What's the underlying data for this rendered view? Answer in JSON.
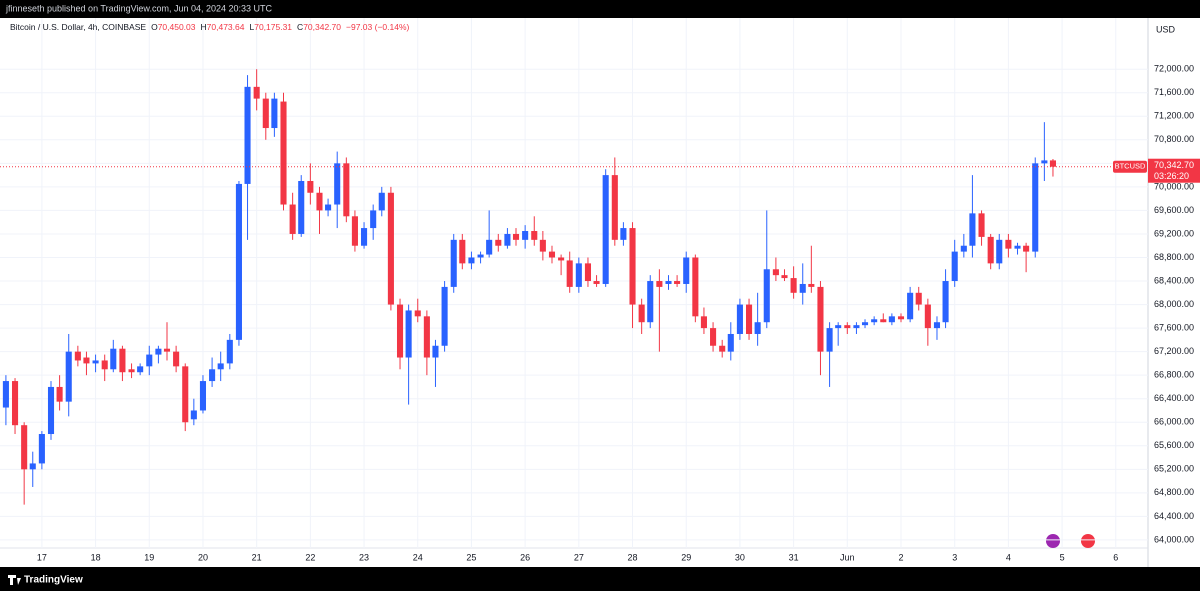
{
  "header": {
    "publisher": "jfinneseth published on TradingView.com, Jun 04, 2024 20:33 UTC"
  },
  "legend": {
    "symbol": "Bitcoin / U.S. Dollar, 4h, COINBASE",
    "items": [
      {
        "key": "O",
        "value": "70,450.03"
      },
      {
        "key": "H",
        "value": "70,473.64"
      },
      {
        "key": "L",
        "value": "70,175.31"
      },
      {
        "key": "C",
        "value": "70,342.70"
      }
    ],
    "change": "−97.03 (−0.14%)"
  },
  "footer": {
    "brand": "TradingView"
  },
  "chart_data": {
    "type": "candlestick",
    "currency": "USD",
    "up_color": "#2962ff",
    "down_color": "#f23645",
    "grid": true,
    "xlim": [
      16.22,
      37.6
    ],
    "ylim": [
      63540,
      72870
    ],
    "xticks": [
      17,
      18,
      19,
      20,
      21,
      22,
      23,
      24,
      25,
      26,
      27,
      28,
      29,
      30,
      31,
      {
        "value": 32,
        "label": "Jun"
      },
      {
        "value": 33,
        "label": "2"
      },
      {
        "value": 34,
        "label": "3"
      },
      {
        "value": 35,
        "label": "4"
      },
      {
        "value": 36,
        "label": "5"
      },
      {
        "value": 37,
        "label": "6"
      }
    ],
    "yticks": [
      {
        "value": 64000,
        "label": "64,000.00"
      },
      {
        "value": 64400,
        "label": "64,400.00"
      },
      {
        "value": 64800,
        "label": "64,800.00"
      },
      {
        "value": 65200,
        "label": "65,200.00"
      },
      {
        "value": 65600,
        "label": "65,600.00"
      },
      {
        "value": 66000,
        "label": "66,000.00"
      },
      {
        "value": 66400,
        "label": "66,400.00"
      },
      {
        "value": 66800,
        "label": "66,800.00"
      },
      {
        "value": 67200,
        "label": "67,200.00"
      },
      {
        "value": 67600,
        "label": "67,600.00"
      },
      {
        "value": 68000,
        "label": "68,000.00"
      },
      {
        "value": 68400,
        "label": "68,400.00"
      },
      {
        "value": 68800,
        "label": "68,800.00"
      },
      {
        "value": 69200,
        "label": "69,200.00"
      },
      {
        "value": 69600,
        "label": "69,600.00"
      },
      {
        "value": 70000,
        "label": "70,000.00"
      },
      {
        "value": 70400,
        "label": "70,400.00"
      },
      {
        "value": 70800,
        "label": "70,800.00"
      },
      {
        "value": 71200,
        "label": "71,200.00"
      },
      {
        "value": 71600,
        "label": "71,600.00"
      },
      {
        "value": 72000,
        "label": "72,000.00"
      }
    ],
    "last": {
      "symbol": "BTCUSD",
      "price": {
        "value": 70342.7,
        "label": "70,342.70"
      },
      "countdown": "03:26:20"
    },
    "candles": [
      {
        "x": 16.33,
        "open": 66250,
        "high": 66800,
        "low": 65950,
        "close": 66700
      },
      {
        "x": 16.5,
        "open": 66700,
        "high": 66750,
        "low": 65800,
        "close": 65950
      },
      {
        "x": 16.67,
        "open": 65950,
        "high": 66000,
        "low": 64600,
        "close": 65200
      },
      {
        "x": 16.83,
        "open": 65200,
        "high": 65500,
        "low": 64900,
        "close": 65300
      },
      {
        "x": 17,
        "open": 65300,
        "high": 65850,
        "low": 65200,
        "close": 65800
      },
      {
        "x": 17.17,
        "open": 65800,
        "high": 66700,
        "low": 65700,
        "close": 66600
      },
      {
        "x": 17.33,
        "open": 66600,
        "high": 66800,
        "low": 66200,
        "close": 66350
      },
      {
        "x": 17.5,
        "open": 66350,
        "high": 67500,
        "low": 66100,
        "close": 67200
      },
      {
        "x": 17.67,
        "open": 67200,
        "high": 67300,
        "low": 66950,
        "close": 67050
      },
      {
        "x": 17.83,
        "open": 67100,
        "high": 67200,
        "low": 66800,
        "close": 67000
      },
      {
        "x": 18,
        "open": 67000,
        "high": 67150,
        "low": 66850,
        "close": 67050
      },
      {
        "x": 18.17,
        "open": 67050,
        "high": 67150,
        "low": 66700,
        "close": 66900
      },
      {
        "x": 18.33,
        "open": 66900,
        "high": 67400,
        "low": 66850,
        "close": 67250
      },
      {
        "x": 18.5,
        "open": 67250,
        "high": 67300,
        "low": 66700,
        "close": 66850
      },
      {
        "x": 18.67,
        "open": 66900,
        "high": 67000,
        "low": 66750,
        "close": 66850
      },
      {
        "x": 18.83,
        "open": 66850,
        "high": 67000,
        "low": 66800,
        "close": 66950
      },
      {
        "x": 19,
        "open": 66950,
        "high": 67300,
        "low": 66800,
        "close": 67150
      },
      {
        "x": 19.17,
        "open": 67150,
        "high": 67300,
        "low": 67000,
        "close": 67250
      },
      {
        "x": 19.33,
        "open": 67250,
        "high": 67700,
        "low": 67050,
        "close": 67200
      },
      {
        "x": 19.5,
        "open": 67200,
        "high": 67300,
        "low": 66850,
        "close": 66950
      },
      {
        "x": 19.67,
        "open": 66950,
        "high": 67000,
        "low": 65850,
        "close": 66000
      },
      {
        "x": 19.83,
        "open": 66050,
        "high": 66400,
        "low": 65950,
        "close": 66200
      },
      {
        "x": 20,
        "open": 66200,
        "high": 66800,
        "low": 66150,
        "close": 66700
      },
      {
        "x": 20.17,
        "open": 66700,
        "high": 67100,
        "low": 66600,
        "close": 66900
      },
      {
        "x": 20.33,
        "open": 66900,
        "high": 67200,
        "low": 66700,
        "close": 67000
      },
      {
        "x": 20.5,
        "open": 67000,
        "high": 67500,
        "low": 66900,
        "close": 67400
      },
      {
        "x": 20.67,
        "open": 67400,
        "high": 70100,
        "low": 67300,
        "close": 70050
      },
      {
        "x": 20.83,
        "open": 70050,
        "high": 71900,
        "low": 69100,
        "close": 71700
      },
      {
        "x": 21,
        "open": 71700,
        "high": 72000,
        "low": 71300,
        "close": 71500
      },
      {
        "x": 21.17,
        "open": 71500,
        "high": 71600,
        "low": 70800,
        "close": 71000
      },
      {
        "x": 21.33,
        "open": 71000,
        "high": 71600,
        "low": 70850,
        "close": 71500
      },
      {
        "x": 21.5,
        "open": 71450,
        "high": 71600,
        "low": 69600,
        "close": 69700
      },
      {
        "x": 21.67,
        "open": 69700,
        "high": 69900,
        "low": 69100,
        "close": 69200
      },
      {
        "x": 21.83,
        "open": 69200,
        "high": 70200,
        "low": 69150,
        "close": 70100
      },
      {
        "x": 22,
        "open": 70100,
        "high": 70400,
        "low": 69700,
        "close": 69900
      },
      {
        "x": 22.17,
        "open": 69900,
        "high": 70000,
        "low": 69200,
        "close": 69600
      },
      {
        "x": 22.33,
        "open": 69600,
        "high": 69800,
        "low": 69500,
        "close": 69700
      },
      {
        "x": 22.5,
        "open": 69700,
        "high": 70600,
        "low": 69300,
        "close": 70400
      },
      {
        "x": 22.67,
        "open": 70400,
        "high": 70500,
        "low": 69400,
        "close": 69500
      },
      {
        "x": 22.83,
        "open": 69500,
        "high": 69600,
        "low": 68900,
        "close": 69000
      },
      {
        "x": 23,
        "open": 69000,
        "high": 69400,
        "low": 68950,
        "close": 69300
      },
      {
        "x": 23.17,
        "open": 69300,
        "high": 69700,
        "low": 69100,
        "close": 69600
      },
      {
        "x": 23.33,
        "open": 69600,
        "high": 70000,
        "low": 69500,
        "close": 69900
      },
      {
        "x": 23.5,
        "open": 69900,
        "high": 70000,
        "low": 67900,
        "close": 68000
      },
      {
        "x": 23.67,
        "open": 68000,
        "high": 68100,
        "low": 66900,
        "close": 67100
      },
      {
        "x": 23.83,
        "open": 67100,
        "high": 68000,
        "low": 66300,
        "close": 67900
      },
      {
        "x": 24,
        "open": 67900,
        "high": 68100,
        "low": 67700,
        "close": 67800
      },
      {
        "x": 24.17,
        "open": 67800,
        "high": 67900,
        "low": 66800,
        "close": 67100
      },
      {
        "x": 24.33,
        "open": 67100,
        "high": 67400,
        "low": 66600,
        "close": 67300
      },
      {
        "x": 24.5,
        "open": 67300,
        "high": 68400,
        "low": 67200,
        "close": 68300
      },
      {
        "x": 24.67,
        "open": 68300,
        "high": 69200,
        "low": 68200,
        "close": 69100
      },
      {
        "x": 24.83,
        "open": 69100,
        "high": 69200,
        "low": 68600,
        "close": 68700
      },
      {
        "x": 25,
        "open": 68700,
        "high": 68900,
        "low": 68600,
        "close": 68800
      },
      {
        "x": 25.17,
        "open": 68800,
        "high": 68900,
        "low": 68700,
        "close": 68850
      },
      {
        "x": 25.33,
        "open": 68850,
        "high": 69600,
        "low": 68800,
        "close": 69100
      },
      {
        "x": 25.5,
        "open": 69100,
        "high": 69200,
        "low": 68900,
        "close": 69000
      },
      {
        "x": 25.67,
        "open": 69000,
        "high": 69300,
        "low": 68950,
        "close": 69200
      },
      {
        "x": 25.83,
        "open": 69200,
        "high": 69300,
        "low": 69000,
        "close": 69100
      },
      {
        "x": 26,
        "open": 69100,
        "high": 69350,
        "low": 68950,
        "close": 69250
      },
      {
        "x": 26.17,
        "open": 69250,
        "high": 69500,
        "low": 69000,
        "close": 69100
      },
      {
        "x": 26.33,
        "open": 69100,
        "high": 69250,
        "low": 68750,
        "close": 68900
      },
      {
        "x": 26.5,
        "open": 68900,
        "high": 69000,
        "low": 68700,
        "close": 68800
      },
      {
        "x": 26.67,
        "open": 68800,
        "high": 68850,
        "low": 68500,
        "close": 68750
      },
      {
        "x": 26.83,
        "open": 68750,
        "high": 68900,
        "low": 68200,
        "close": 68300
      },
      {
        "x": 27,
        "open": 68300,
        "high": 68800,
        "low": 68200,
        "close": 68700
      },
      {
        "x": 27.17,
        "open": 68700,
        "high": 68800,
        "low": 68300,
        "close": 68400
      },
      {
        "x": 27.33,
        "open": 68400,
        "high": 68500,
        "low": 68300,
        "close": 68350
      },
      {
        "x": 27.5,
        "open": 68350,
        "high": 70300,
        "low": 68300,
        "close": 70200
      },
      {
        "x": 27.67,
        "open": 70200,
        "high": 70500,
        "low": 69000,
        "close": 69100
      },
      {
        "x": 27.83,
        "open": 69100,
        "high": 69400,
        "low": 69000,
        "close": 69300
      },
      {
        "x": 28,
        "open": 69300,
        "high": 69400,
        "low": 67600,
        "close": 68000
      },
      {
        "x": 28.17,
        "open": 68000,
        "high": 68100,
        "low": 67500,
        "close": 67700
      },
      {
        "x": 28.33,
        "open": 67700,
        "high": 68500,
        "low": 67600,
        "close": 68400
      },
      {
        "x": 28.5,
        "open": 68400,
        "high": 68600,
        "low": 67200,
        "close": 68300
      },
      {
        "x": 28.67,
        "open": 68350,
        "high": 68500,
        "low": 68250,
        "close": 68400
      },
      {
        "x": 28.83,
        "open": 68400,
        "high": 68500,
        "low": 68300,
        "close": 68350
      },
      {
        "x": 29,
        "open": 68350,
        "high": 68900,
        "low": 68200,
        "close": 68800
      },
      {
        "x": 29.17,
        "open": 68800,
        "high": 68850,
        "low": 67700,
        "close": 67800
      },
      {
        "x": 29.33,
        "open": 67800,
        "high": 67950,
        "low": 67500,
        "close": 67600
      },
      {
        "x": 29.5,
        "open": 67600,
        "high": 67700,
        "low": 67200,
        "close": 67300
      },
      {
        "x": 29.67,
        "open": 67300,
        "high": 67400,
        "low": 67100,
        "close": 67200
      },
      {
        "x": 29.83,
        "open": 67200,
        "high": 67700,
        "low": 67050,
        "close": 67500
      },
      {
        "x": 30,
        "open": 67500,
        "high": 68100,
        "low": 67400,
        "close": 68000
      },
      {
        "x": 30.17,
        "open": 68000,
        "high": 68100,
        "low": 67400,
        "close": 67500
      },
      {
        "x": 30.33,
        "open": 67500,
        "high": 68200,
        "low": 67300,
        "close": 67700
      },
      {
        "x": 30.5,
        "open": 67700,
        "high": 69600,
        "low": 67600,
        "close": 68600
      },
      {
        "x": 30.67,
        "open": 68600,
        "high": 68800,
        "low": 68400,
        "close": 68500
      },
      {
        "x": 30.83,
        "open": 68500,
        "high": 68600,
        "low": 68400,
        "close": 68450
      },
      {
        "x": 31,
        "open": 68450,
        "high": 68650,
        "low": 68100,
        "close": 68200
      },
      {
        "x": 31.17,
        "open": 68200,
        "high": 68700,
        "low": 68000,
        "close": 68350
      },
      {
        "x": 31.33,
        "open": 68350,
        "high": 69000,
        "low": 68200,
        "close": 68300
      },
      {
        "x": 31.5,
        "open": 68300,
        "high": 68400,
        "low": 66800,
        "close": 67200
      },
      {
        "x": 31.67,
        "open": 67200,
        "high": 67700,
        "low": 66600,
        "close": 67600
      },
      {
        "x": 31.83,
        "open": 67600,
        "high": 67700,
        "low": 67300,
        "close": 67650
      },
      {
        "x": 32,
        "open": 67650,
        "high": 67700,
        "low": 67500,
        "close": 67600
      },
      {
        "x": 32.17,
        "open": 67600,
        "high": 67700,
        "low": 67500,
        "close": 67650
      },
      {
        "x": 32.33,
        "open": 67650,
        "high": 67750,
        "low": 67600,
        "close": 67700
      },
      {
        "x": 32.5,
        "open": 67700,
        "high": 67800,
        "low": 67650,
        "close": 67750
      },
      {
        "x": 32.67,
        "open": 67750,
        "high": 67850,
        "low": 67700,
        "close": 67700
      },
      {
        "x": 32.83,
        "open": 67700,
        "high": 67850,
        "low": 67650,
        "close": 67800
      },
      {
        "x": 33,
        "open": 67800,
        "high": 67850,
        "low": 67700,
        "close": 67750
      },
      {
        "x": 33.17,
        "open": 67750,
        "high": 68300,
        "low": 67700,
        "close": 68200
      },
      {
        "x": 33.33,
        "open": 68200,
        "high": 68300,
        "low": 67900,
        "close": 68000
      },
      {
        "x": 33.5,
        "open": 68000,
        "high": 68100,
        "low": 67300,
        "close": 67600
      },
      {
        "x": 33.67,
        "open": 67600,
        "high": 67800,
        "low": 67400,
        "close": 67700
      },
      {
        "x": 33.83,
        "open": 67700,
        "high": 68600,
        "low": 67600,
        "close": 68400
      },
      {
        "x": 34,
        "open": 68400,
        "high": 69100,
        "low": 68300,
        "close": 68900
      },
      {
        "x": 34.17,
        "open": 68900,
        "high": 69200,
        "low": 68800,
        "close": 69000
      },
      {
        "x": 34.33,
        "open": 69000,
        "high": 70200,
        "low": 68800,
        "close": 69550
      },
      {
        "x": 34.5,
        "open": 69550,
        "high": 69600,
        "low": 69000,
        "close": 69150
      },
      {
        "x": 34.67,
        "open": 69150,
        "high": 69200,
        "low": 68600,
        "close": 68700
      },
      {
        "x": 34.83,
        "open": 68700,
        "high": 69200,
        "low": 68600,
        "close": 69100
      },
      {
        "x": 35,
        "open": 69100,
        "high": 69200,
        "low": 68800,
        "close": 68950
      },
      {
        "x": 35.17,
        "open": 68950,
        "high": 69050,
        "low": 68850,
        "close": 69000
      },
      {
        "x": 35.33,
        "open": 69000,
        "high": 69050,
        "low": 68550,
        "close": 68900
      },
      {
        "x": 35.5,
        "open": 68900,
        "high": 70500,
        "low": 68800,
        "close": 70400
      },
      {
        "x": 35.67,
        "open": 70400,
        "high": 71100,
        "low": 70100,
        "close": 70450
      },
      {
        "x": 35.83,
        "open": 70450.03,
        "high": 70473.64,
        "low": 70175.31,
        "close": 70342.7
      }
    ]
  }
}
